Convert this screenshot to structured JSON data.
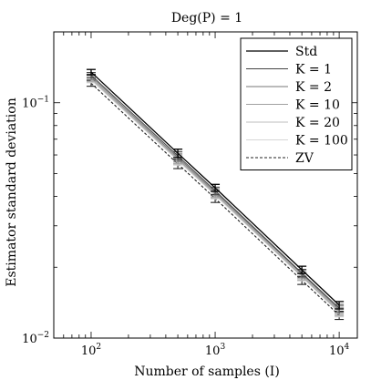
{
  "chart_data": {
    "type": "line",
    "title": "Deg(P) = 1",
    "xlabel": "Number of samples (I)",
    "ylabel": "Estimator standard deviation",
    "xscale": "log",
    "yscale": "log",
    "xlim": [
      50,
      14000
    ],
    "ylim": [
      0.01,
      0.2
    ],
    "grid": false,
    "legend_position": "top-right",
    "x": [
      100,
      500,
      1000,
      5000,
      10000
    ],
    "x_tick_labels": [
      {
        "value": 100,
        "base": "10",
        "exp": "2"
      },
      {
        "value": 1000,
        "base": "10",
        "exp": "3"
      },
      {
        "value": 10000,
        "base": "10",
        "exp": "4"
      }
    ],
    "y_tick_labels": [
      {
        "value": 0.01,
        "base": "10",
        "exp": "−2"
      },
      {
        "value": 0.1,
        "base": "10",
        "exp": "−1"
      }
    ],
    "series": [
      {
        "name": "Std",
        "color": "#000000",
        "dash": "",
        "width": 1.3,
        "values": [
          0.135,
          0.061,
          0.0435,
          0.0195,
          0.0138
        ],
        "err": [
          0.0035,
          0.0025,
          0.0015,
          0.0007,
          0.0005
        ]
      },
      {
        "name": "K = 1",
        "color": "#444444",
        "dash": "",
        "width": 1.0,
        "values": [
          0.131,
          0.0595,
          0.0423,
          0.0189,
          0.0134
        ],
        "err": [
          0.0035,
          0.0025,
          0.0015,
          0.0007,
          0.0005
        ]
      },
      {
        "name": "K = 2",
        "color": "#777777",
        "dash": "",
        "width": 1.0,
        "values": [
          0.129,
          0.0585,
          0.0417,
          0.0187,
          0.0132
        ],
        "err": [
          0.0035,
          0.0025,
          0.0015,
          0.0007,
          0.0005
        ]
      },
      {
        "name": "K = 10",
        "color": "#a0a0a0",
        "dash": "",
        "width": 1.0,
        "values": [
          0.127,
          0.0577,
          0.0411,
          0.0184,
          0.013
        ],
        "err": [
          0.0035,
          0.0025,
          0.0015,
          0.0007,
          0.0005
        ]
      },
      {
        "name": "K = 20",
        "color": "#bdbdbd",
        "dash": "",
        "width": 1.0,
        "values": [
          0.126,
          0.0572,
          0.0408,
          0.0183,
          0.0129
        ],
        "err": [
          0.0035,
          0.0025,
          0.0015,
          0.0007,
          0.0005
        ]
      },
      {
        "name": "K = 100",
        "color": "#d6d6d6",
        "dash": "",
        "width": 1.0,
        "values": [
          0.125,
          0.0568,
          0.0405,
          0.0182,
          0.0128
        ],
        "err": [
          0.0035,
          0.0025,
          0.0015,
          0.0007,
          0.0005
        ]
      },
      {
        "name": "ZV",
        "color": "#222222",
        "dash": "3,2",
        "width": 1.1,
        "values": [
          0.121,
          0.055,
          0.0392,
          0.0176,
          0.0125
        ],
        "err": [
          0.0035,
          0.0025,
          0.0015,
          0.0007,
          0.0005
        ]
      }
    ]
  }
}
